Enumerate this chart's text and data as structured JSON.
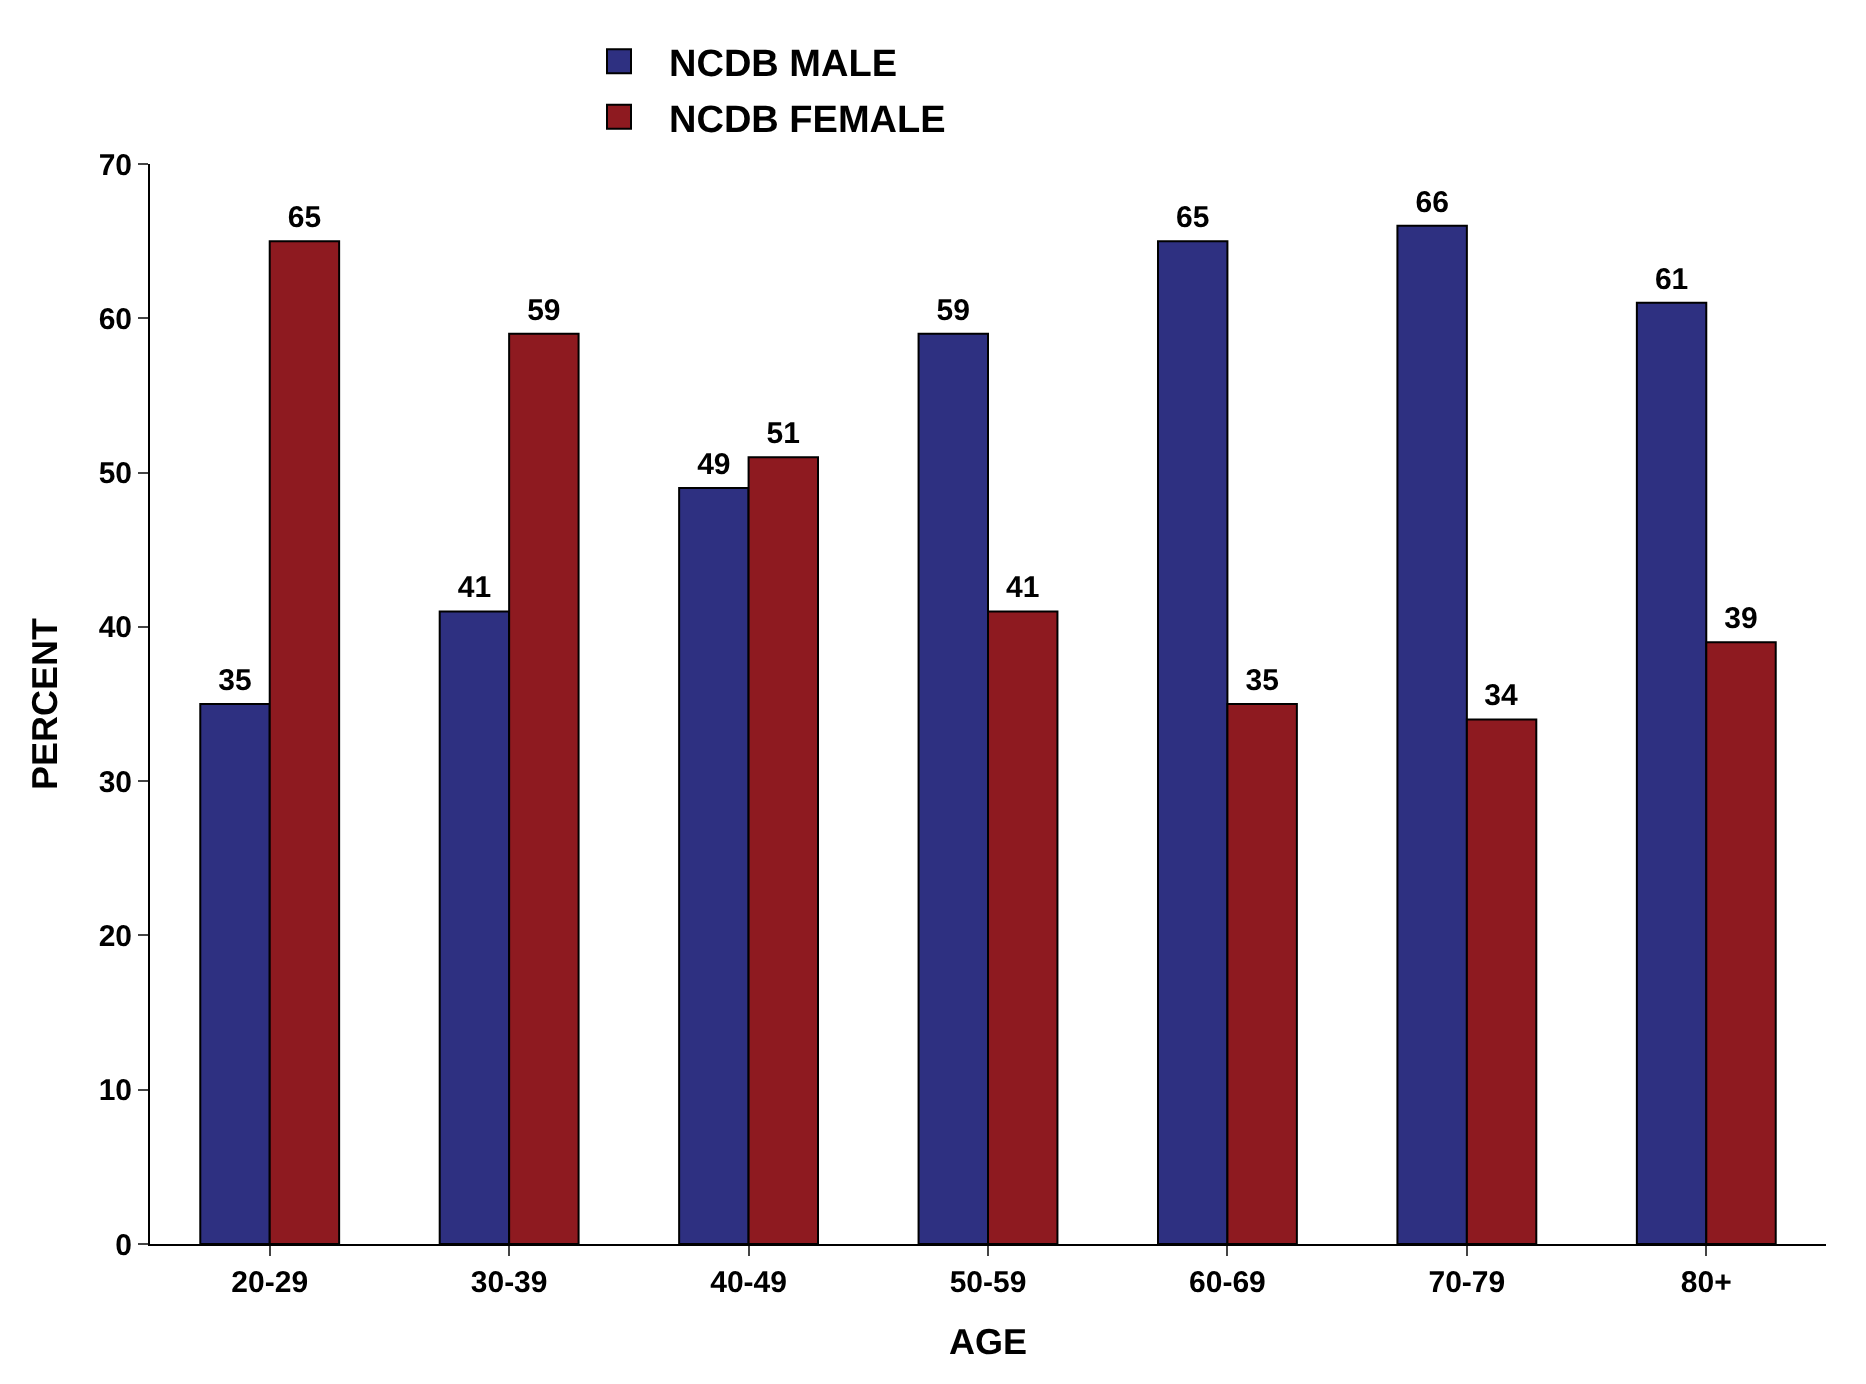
{
  "chart_data": {
    "type": "bar",
    "xlabel": "AGE",
    "ylabel": "PERCENT",
    "categories": [
      "20-29",
      "30-39",
      "40-49",
      "50-59",
      "60-69",
      "70-79",
      "80+"
    ],
    "series": [
      {
        "name": "NCDB MALE",
        "color": "#2e3081",
        "values": [
          35,
          41,
          49,
          59,
          65,
          66,
          61
        ]
      },
      {
        "name": "NCDB FEMALE",
        "color": "#8e1a20",
        "values": [
          65,
          59,
          51,
          41,
          35,
          34,
          39
        ]
      }
    ],
    "ylim": [
      0,
      70
    ],
    "yticks": [
      0,
      10,
      20,
      30,
      40,
      50,
      60,
      70
    ],
    "data_labels": true,
    "grid": false,
    "legend": "top"
  }
}
